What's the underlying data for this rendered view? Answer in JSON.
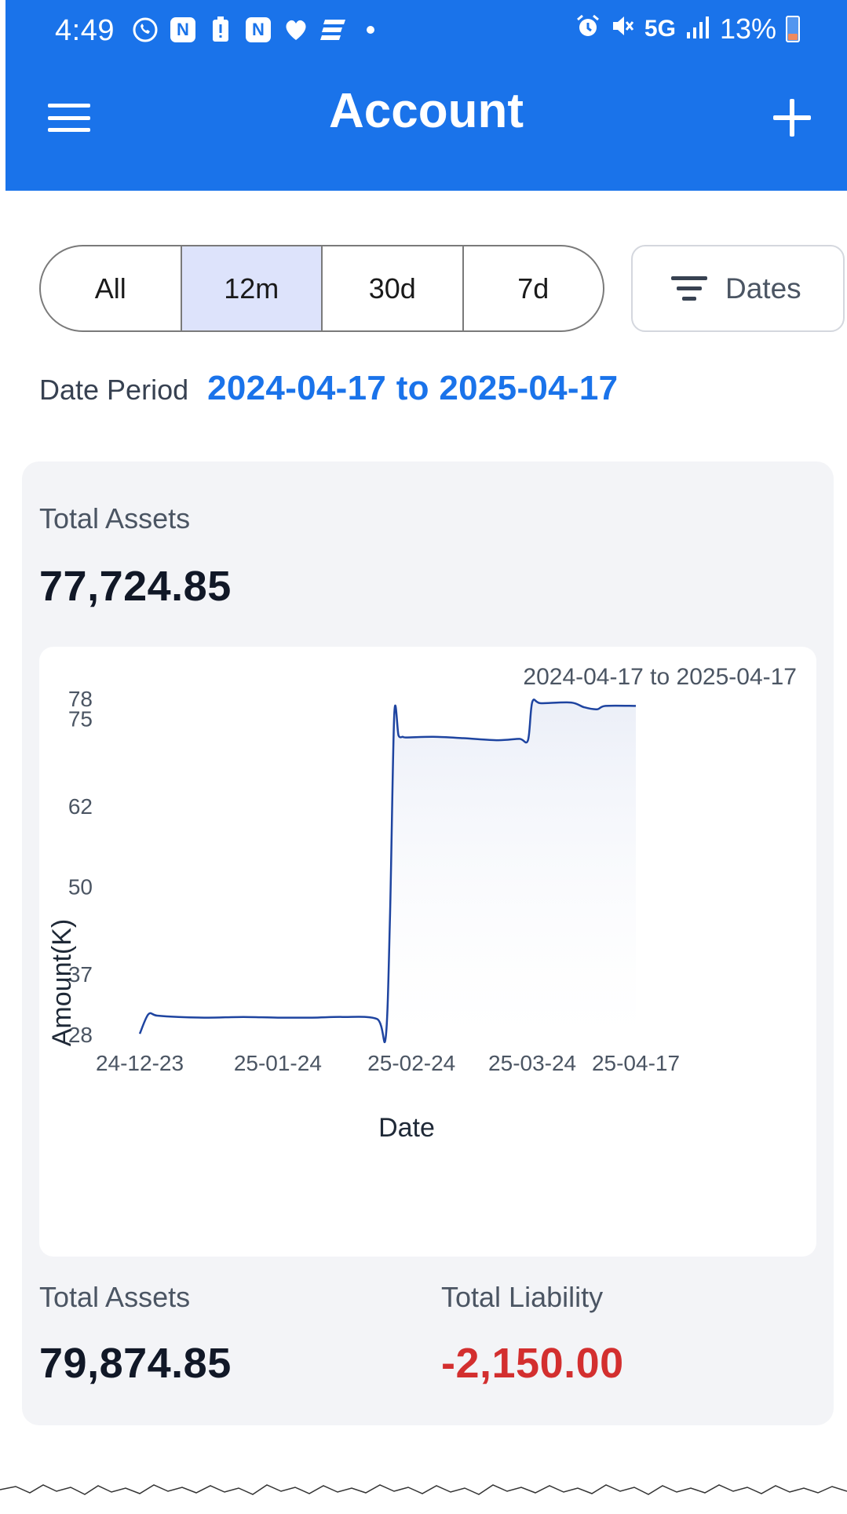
{
  "status_bar": {
    "time": "4:49",
    "network": "5G",
    "battery": "13%",
    "notification_icons": [
      "whatsapp-icon",
      "app-icon",
      "battery-alert-icon",
      "app-icon",
      "health-icon",
      "app-icon"
    ]
  },
  "app_bar": {
    "title": "Account"
  },
  "range_tabs": [
    {
      "label": "All",
      "active": false
    },
    {
      "label": "12m",
      "active": true
    },
    {
      "label": "30d",
      "active": false
    },
    {
      "label": "7d",
      "active": false
    }
  ],
  "dates_button": {
    "label": "Dates"
  },
  "period": {
    "label": "Date Period",
    "value": "2024-04-17 to 2025-04-17"
  },
  "summary": {
    "total_assets_label": "Total Assets",
    "total_assets_value": "77,724.85",
    "bottom_assets_label": "Total Assets",
    "bottom_assets_value": "79,874.85",
    "liability_label": "Total Liability",
    "liability_value": "-2,150.00"
  },
  "colors": {
    "accent": "#1a73ea",
    "line": "#1e44a0",
    "negative": "#d32f2f",
    "card_bg": "#f3f4f7"
  },
  "chart_data": {
    "type": "area",
    "title": "2024-04-17 to 2025-04-17",
    "xlabel": "Date",
    "ylabel": "Amount(K)",
    "ylim": [
      28,
      78
    ],
    "xlim": [
      "24-12-23",
      "25-04-17"
    ],
    "y_ticks": [
      28,
      37,
      50,
      62,
      75,
      78
    ],
    "x_ticks": [
      "24-12-23",
      "25-01-24",
      "25-02-24",
      "25-03-24",
      "25-04-17"
    ],
    "grid": false,
    "legend": "none",
    "x": [
      "24-12-23",
      "24-12-25",
      "24-12-27",
      "25-01-01",
      "25-01-08",
      "25-01-16",
      "25-01-24",
      "25-02-01",
      "25-02-08",
      "25-02-16",
      "25-02-18",
      "25-02-19",
      "25-02-20",
      "25-02-21",
      "25-02-22",
      "25-02-23",
      "25-03-01",
      "25-03-08",
      "25-03-16",
      "25-03-21",
      "25-03-23",
      "25-03-24",
      "25-03-26",
      "25-04-02",
      "25-04-05",
      "25-04-08",
      "25-04-10",
      "25-04-17"
    ],
    "values": [
      28.1,
      31.0,
      30.8,
      30.6,
      30.5,
      30.6,
      30.5,
      30.5,
      30.6,
      30.3,
      27.5,
      45,
      75.5,
      72.5,
      72.3,
      72.2,
      72.3,
      72.1,
      71.8,
      72.0,
      71.8,
      77.5,
      77.3,
      77.4,
      76.7,
      76.4,
      76.9,
      76.9
    ]
  }
}
